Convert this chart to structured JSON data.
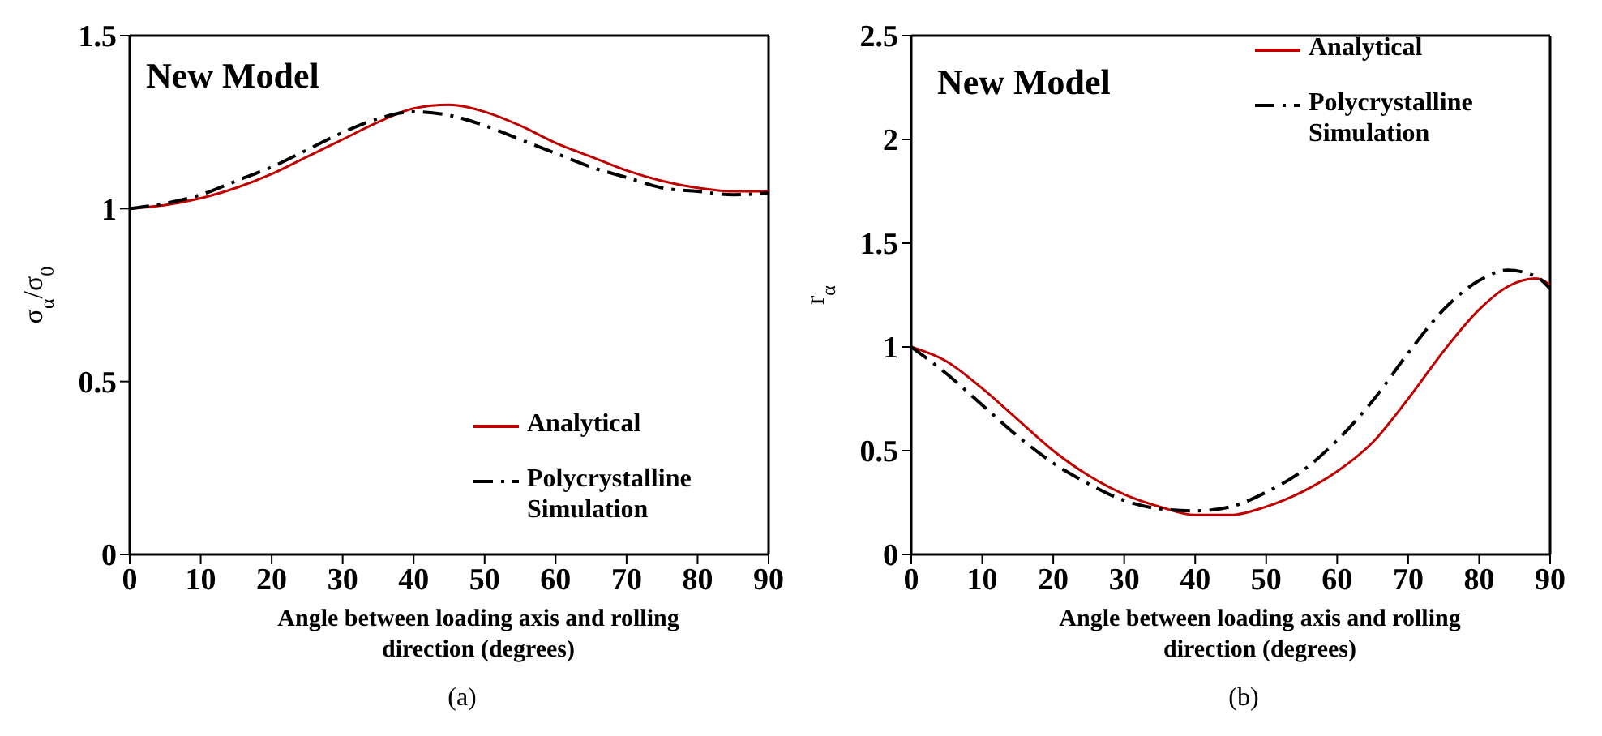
{
  "chart_data": [
    {
      "type": "line",
      "x": [
        0,
        5,
        10,
        15,
        20,
        25,
        30,
        35,
        40,
        45,
        50,
        55,
        60,
        65,
        70,
        75,
        80,
        85,
        90
      ],
      "xlabel": "Angle between loading axis and rolling direction (degrees)",
      "ylabel": "σ$_{α}$/σ$_{0}$",
      "xlim": [
        0,
        90
      ],
      "xticks": [
        0,
        10,
        20,
        30,
        40,
        50,
        60,
        70,
        80,
        90
      ],
      "ylim": [
        0,
        1.5
      ],
      "yticks": [
        0,
        0.5,
        1,
        1.5
      ],
      "legend": "bottom right",
      "annotations": [
        "New Model",
        "(a)"
      ],
      "series": [
        {
          "name": "Analytical",
          "color": "#c00000",
          "line_style": "solid",
          "values": [
            1.0,
            1.01,
            1.03,
            1.06,
            1.1,
            1.15,
            1.2,
            1.25,
            1.29,
            1.3,
            1.28,
            1.24,
            1.19,
            1.15,
            1.11,
            1.08,
            1.06,
            1.05,
            1.05
          ]
        },
        {
          "name": "Polycrystalline Simulation",
          "color": "#000000",
          "line_style": "dashed",
          "values": [
            1.0,
            1.015,
            1.04,
            1.08,
            1.12,
            1.17,
            1.22,
            1.26,
            1.28,
            1.27,
            1.24,
            1.2,
            1.16,
            1.12,
            1.09,
            1.06,
            1.05,
            1.04,
            1.045
          ]
        }
      ]
    },
    {
      "type": "line",
      "x": [
        0,
        5,
        10,
        15,
        20,
        25,
        30,
        35,
        40,
        45,
        50,
        55,
        60,
        65,
        70,
        75,
        80,
        84,
        88,
        90
      ],
      "xlabel": "Angle between loading axis and rolling direction (degrees)",
      "ylabel": "r$_{α}$",
      "xlim": [
        0,
        90
      ],
      "xticks": [
        0,
        10,
        20,
        30,
        40,
        50,
        60,
        70,
        80,
        90
      ],
      "ylim": [
        0,
        2.5
      ],
      "yticks": [
        0,
        0.5,
        1,
        1.5,
        2,
        2.5
      ],
      "legend": "top right",
      "annotations": [
        "New Model",
        "(b)"
      ],
      "series": [
        {
          "name": "Analytical",
          "color": "#c00000",
          "line_style": "solid",
          "values": [
            1.0,
            0.93,
            0.8,
            0.65,
            0.5,
            0.38,
            0.29,
            0.23,
            0.19,
            0.19,
            0.23,
            0.3,
            0.4,
            0.54,
            0.75,
            0.98,
            1.18,
            1.29,
            1.33,
            1.3
          ]
        },
        {
          "name": "Polycrystalline Simulation",
          "color": "#000000",
          "line_style": "dashed",
          "values": [
            1.0,
            0.87,
            0.72,
            0.57,
            0.44,
            0.34,
            0.26,
            0.22,
            0.21,
            0.23,
            0.3,
            0.4,
            0.55,
            0.74,
            0.97,
            1.18,
            1.32,
            1.37,
            1.34,
            1.28
          ]
        }
      ]
    }
  ]
}
